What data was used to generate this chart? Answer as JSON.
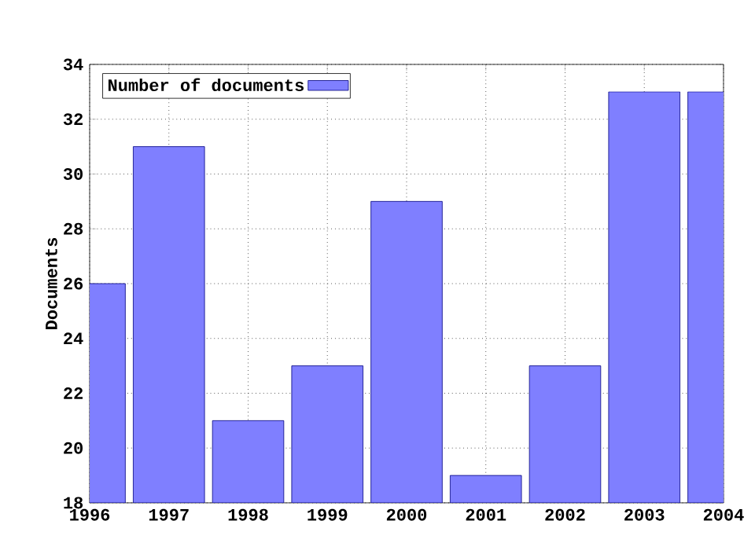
{
  "chart_data": {
    "type": "bar",
    "ylabel": "Documents",
    "x": [
      1996,
      1997,
      1998,
      1999,
      2000,
      2001,
      2002,
      2003,
      2004
    ],
    "series": [
      {
        "name": "Number of documents",
        "color": "#7f7fff",
        "values": [
          26,
          31,
          21,
          23,
          29,
          19,
          23,
          33,
          33
        ]
      }
    ],
    "xlim": [
      1996,
      2004
    ],
    "xticks": [
      1996,
      1997,
      1998,
      1999,
      2000,
      2001,
      2002,
      2003,
      2004
    ],
    "ylim": [
      18,
      34
    ],
    "yticks": [
      18,
      20,
      22,
      24,
      26,
      28,
      30,
      32,
      34
    ],
    "grid": true,
    "legend": "top left"
  }
}
